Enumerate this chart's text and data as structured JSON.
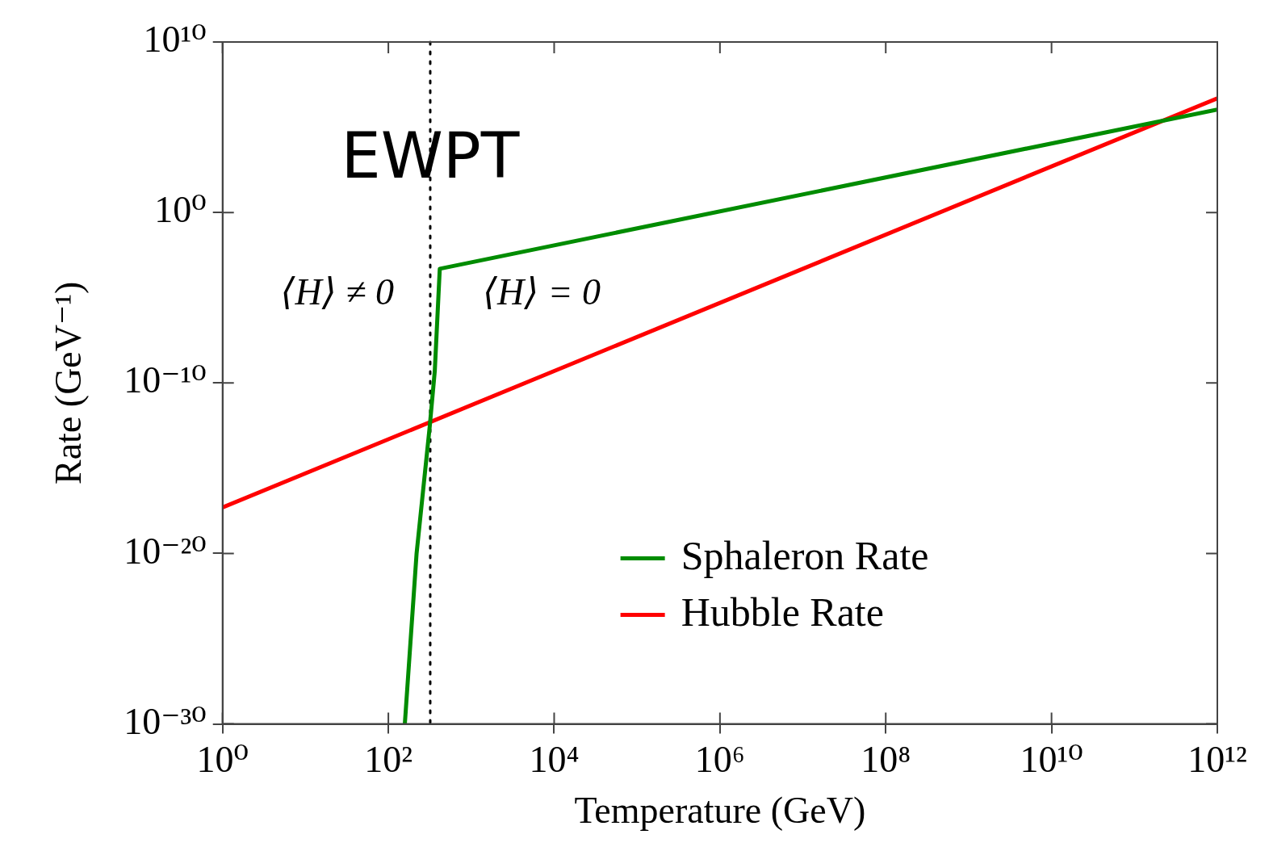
{
  "chart_data": {
    "type": "line",
    "xlabel": "Temperature (GeV)",
    "ylabel": "Rate (GeV⁻¹)",
    "log": "xy",
    "grid": false,
    "legend": "bottom right",
    "line_style": "solid",
    "marker": "none",
    "xlim": [
      1,
      1000000000000.0
    ],
    "ylim": [
      1e-30,
      10000000000.0
    ],
    "xticks": [
      {
        "value": 1,
        "label": "10⁰"
      },
      {
        "value": 100,
        "label": "10²"
      },
      {
        "value": 10000,
        "label": "10⁴"
      },
      {
        "value": 1000000,
        "label": "10⁶"
      },
      {
        "value": 100000000,
        "label": "10⁸"
      },
      {
        "value": 10000000000,
        "label": "10¹⁰"
      },
      {
        "value": 1000000000000,
        "label": "10¹²"
      }
    ],
    "yticks": [
      {
        "value": 1e-30,
        "label": "10⁻³⁰"
      },
      {
        "value": 1e-20,
        "label": "10⁻²⁰"
      },
      {
        "value": 1e-10,
        "label": "10⁻¹⁰"
      },
      {
        "value": 1,
        "label": "10⁰"
      },
      {
        "value": 10000000000.0,
        "label": "10¹⁰"
      }
    ],
    "series": [
      {
        "name": "Sphaleron Rate",
        "color": "#008c00",
        "x": [
          158,
          219,
          316,
          363,
          417,
          1000000000000.0
        ],
        "values": [
          1e-30,
          1e-20,
          3e-13,
          5e-10,
          0.0005,
          1100000.0
        ]
      },
      {
        "name": "Hubble Rate",
        "color": "#ff0000",
        "x": [
          1,
          1000000000000.0
        ],
        "values": [
          5e-18,
          5000000.0
        ]
      }
    ],
    "ref_lines": [
      {
        "axis": "x",
        "value": 320,
        "color": "#000000",
        "line_style": "dotted"
      }
    ],
    "annotations": [
      {
        "text": "EWPT",
        "x": 320,
        "y": 1000
      },
      "⟨H⟩ ≠ 0",
      "⟨H⟩ = 0"
    ]
  }
}
